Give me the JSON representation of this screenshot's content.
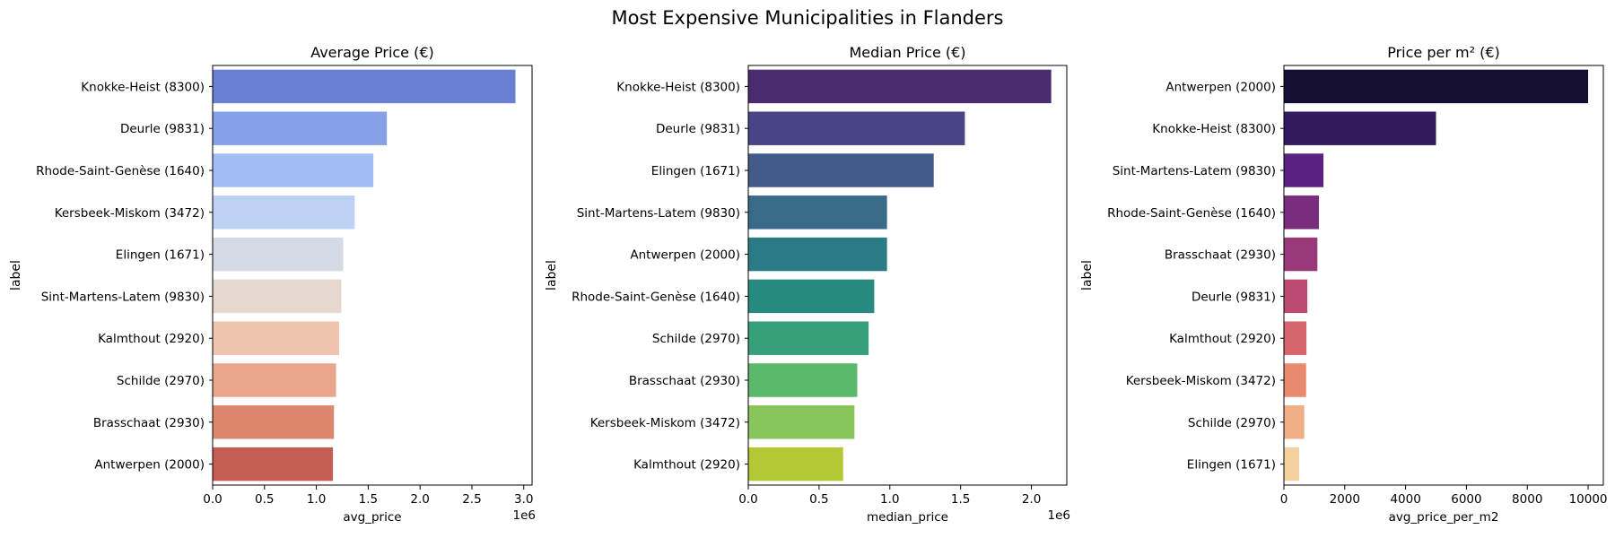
{
  "suptitle": "Most Expensive Municipalities in Flanders",
  "chart_data": [
    {
      "type": "bar",
      "orientation": "horizontal",
      "title": "Average Price (€)",
      "xlabel": "avg_price",
      "ylabel": "label",
      "x_offset_label": "1e6",
      "xlim": [
        0,
        3080000
      ],
      "xticks": [
        0,
        500000,
        1000000,
        1500000,
        2000000,
        2500000,
        3000000
      ],
      "xtick_labels": [
        "0.0",
        "0.5",
        "1.0",
        "1.5",
        "2.0",
        "2.5",
        "3.0"
      ],
      "categories": [
        "Knokke-Heist (8300)",
        "Deurle (9831)",
        "Rhode-Saint-Genèse (1640)",
        "Kersbeek-Miskom (3472)",
        "Elingen (1671)",
        "Sint-Martens-Latem (9830)",
        "Kalmthout (2920)",
        "Schilde (2970)",
        "Brasschaat (2930)",
        "Antwerpen (2000)"
      ],
      "values": [
        2920000,
        1680000,
        1550000,
        1370000,
        1260000,
        1240000,
        1220000,
        1190000,
        1170000,
        1160000
      ],
      "colors": [
        "#6a80d5",
        "#87a1e8",
        "#a2bdf6",
        "#bdd1f3",
        "#d4dbe6",
        "#e6d8cf",
        "#efc3ae",
        "#e9a68a",
        "#dc866e",
        "#c45e55"
      ]
    },
    {
      "type": "bar",
      "orientation": "horizontal",
      "title": "Median Price (€)",
      "xlabel": "median_price",
      "ylabel": "label",
      "x_offset_label": "1e6",
      "xlim": [
        0,
        2250000
      ],
      "xticks": [
        0,
        500000,
        1000000,
        1500000,
        2000000
      ],
      "xtick_labels": [
        "0.0",
        "0.5",
        "1.0",
        "1.5",
        "2.0"
      ],
      "categories": [
        "Knokke-Heist (8300)",
        "Deurle (9831)",
        "Elingen (1671)",
        "Sint-Martens-Latem (9830)",
        "Antwerpen (2000)",
        "Rhode-Saint-Genèse (1640)",
        "Schilde (2970)",
        "Brasschaat (2930)",
        "Kersbeek-Miskom (3472)",
        "Kalmthout (2920)"
      ],
      "values": [
        2140000,
        1530000,
        1310000,
        980000,
        980000,
        890000,
        850000,
        770000,
        750000,
        670000
      ],
      "colors": [
        "#4a2c6e",
        "#494483",
        "#425b89",
        "#376b88",
        "#2a7b86",
        "#268a81",
        "#36a07a",
        "#5bb96b",
        "#88c55a",
        "#b4c835"
      ]
    },
    {
      "type": "bar",
      "orientation": "horizontal",
      "title": "Price per m² (€)",
      "xlabel": "avg_price_per_m2",
      "ylabel": "label",
      "x_offset_label": "",
      "xlim": [
        0,
        10500
      ],
      "xticks": [
        0,
        2000,
        4000,
        6000,
        8000,
        10000
      ],
      "xtick_labels": [
        "0",
        "2000",
        "4000",
        "6000",
        "8000",
        "10000"
      ],
      "categories": [
        "Antwerpen (2000)",
        "Knokke-Heist (8300)",
        "Sint-Martens-Latem (9830)",
        "Rhode-Saint-Genèse (1640)",
        "Brasschaat (2930)",
        "Deurle (9831)",
        "Kalmthout (2920)",
        "Kersbeek-Miskom (3472)",
        "Schilde (2970)",
        "Elingen (1671)"
      ],
      "values": [
        10000,
        5000,
        1300,
        1150,
        1100,
        770,
        740,
        730,
        670,
        500
      ],
      "colors": [
        "#140f30",
        "#331a5f",
        "#5b2180",
        "#7a2d7c",
        "#99397a",
        "#bd4a72",
        "#d6646c",
        "#e78a6e",
        "#efae86",
        "#f4d09f"
      ]
    }
  ]
}
